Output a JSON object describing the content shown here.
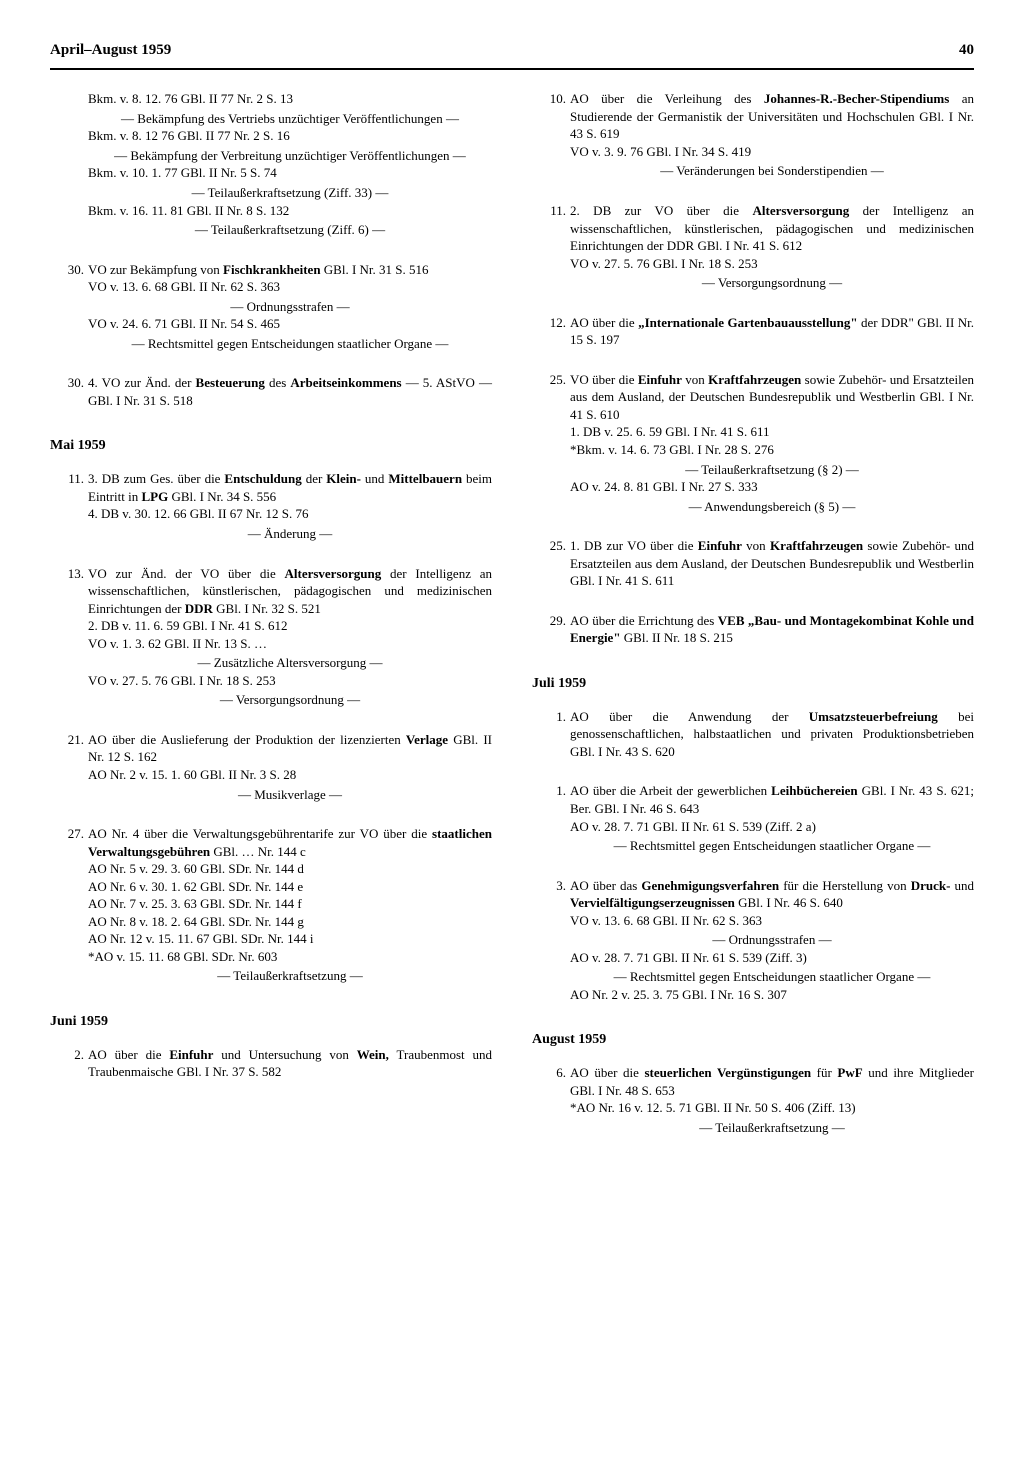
{
  "header": {
    "title": "April–August 1959",
    "page": "40"
  },
  "left": {
    "top_lines": [
      "Bkm. v.  8. 12. 76   GBl. II 77 Nr. 2 S. 13",
      "— Bekämpfung des Vertriebs unzüchtiger Veröffentlichungen —",
      "Bkm. v.  8. 12 76   GBl. II 77 Nr. 2 S. 16",
      "— Bekämpfung der Verbreitung unzüchtiger Veröffentlichungen —",
      "Bkm. v. 10.  1. 77   GBl. II Nr. 5 S. 74",
      "— Teilaußerkraftsetzung (Ziff. 33) —",
      "Bkm. v. 16. 11. 81   GBl. II Nr. 8 S. 132",
      "— Teilaußerkraftsetzung (Ziff. 6) —"
    ],
    "e30a": {
      "num": "30.",
      "body": "VO zur Bekämpfung von <b>Fischkrankheiten</b>   GBl. I Nr. 31 S. 516",
      "subs": [
        "VO v. 13. 6. 68   GBl. II Nr. 62 S. 363",
        "— Ordnungsstrafen —",
        "VO v. 24. 6. 71   GBl. II Nr. 54 S. 465",
        "— Rechtsmittel gegen Entscheidungen staatlicher Organe —"
      ]
    },
    "e30b": {
      "num": "30.",
      "body": "4. VO zur Änd. der <b>Besteuerung</b> des <b>Arbeitseinkommens</b> — 5. AStVO —   GBl. I Nr. 31 S. 518"
    },
    "month_mai": "Mai 1959",
    "e11": {
      "num": "11.",
      "body": "3. DB zum Ges. über die <b>Entschuldung</b> der <b>Klein-</b> und <b>Mittelbauern</b> beim Eintritt in <b>LPG</b>   GBl. I Nr. 34 S. 556",
      "subs": [
        "4. DB v. 30. 12. 66   GBl. II 67 Nr. 12 S. 76",
        "— Änderung —"
      ]
    },
    "e13": {
      "num": "13.",
      "body": "VO zur Änd. der VO über die <b>Altersversorgung</b> der Intelligenz an wissenschaftlichen, künstlerischen, pädagogischen und medizinischen Einrichtungen der <b>DDR</b>   GBl. I Nr. 32 S. 521",
      "subs": [
        "2. DB v. 11. 6. 59   GBl.  I Nr. 41 S. 612",
        "VO    v.  1. 3. 62   GBl. II Nr. 13 S. …",
        "— Zusätzliche Altersversorgung —",
        "VO   v. 27. 5. 76   GBl.  I Nr. 18 S. 253",
        "— Versorgungsordnung —"
      ]
    },
    "e21": {
      "num": "21.",
      "body": "AO über die Auslieferung der Produktion der lizenzierten <b>Verlage</b>   GBl. II Nr. 12 S. 162",
      "subs": [
        "AO Nr. 2 v. 15. 1. 60   GBl. II Nr. 3 S. 28",
        "— Musikverlage —"
      ]
    },
    "e27": {
      "num": "27.",
      "body": "AO Nr. 4 über die Verwaltungsgebührentarife zur VO über die <b>staatlichen Verwaltungsgebühren</b>   GBl. … Nr. 144 c",
      "subs": [
        "AO Nr.   5 v. 29.  3. 60   GBl. SDr. Nr. 144 d",
        "AO Nr.   6 v. 30.  1. 62   GBl. SDr. Nr. 144 e",
        "AO Nr.   7 v. 25.  3. 63   GBl. SDr. Nr. 144 f",
        "AO Nr.   8 v. 18.  2. 64   GBl. SDr. Nr. 144 g",
        "AO Nr. 12 v. 15. 11. 67   GBl. SDr. Nr. 144 i",
        "*AO        v. 15. 11. 68   GBl. SDr. Nr. 603",
        "— Teilaußerkraftsetzung —"
      ]
    },
    "month_juni": "Juni 1959",
    "e2": {
      "num": "2.",
      "body": "AO über die <b>Einfuhr</b> und Untersuchung von <b>Wein,</b> Traubenmost und Traubenmaische   GBl. I   Nr. 37 S. 582"
    }
  },
  "right": {
    "e10": {
      "num": "10.",
      "body": "AO über die Verleihung des <b>Johannes-R.-Becher-Stipendiums</b> an Studierende der Germanistik der Universitäten und Hochschulen   GBl. I Nr. 43 S. 619",
      "subs": [
        "VO v. 3. 9. 76   GBl. I Nr. 34 S. 419",
        "— Veränderungen bei Sonderstipendien —"
      ]
    },
    "e11": {
      "num": "11.",
      "body": "2. DB zur VO über die <b>Altersversorgung</b> der Intelligenz an wissenschaftlichen, künstlerischen, pädagogischen und medizinischen Einrichtungen der DDR   GBl. I Nr. 41 S. 612",
      "subs": [
        "VO v. 27. 5. 76   GBl. I Nr. 18 S. 253",
        "— Versorgungsordnung —"
      ]
    },
    "e12": {
      "num": "12.",
      "body": "AO über die <b>„Internationale Gartenbauausstellung\"</b> der DDR\"   GBl. II Nr. 15 S. 197"
    },
    "e25a": {
      "num": "25.",
      "body": "VO über die <b>Einfuhr</b> von <b>Kraftfahrzeugen</b> sowie Zubehör- und Ersatzteilen aus dem Ausland, der Deutschen Bundesrepublik und Westberlin   GBl. I Nr. 41 S. 610",
      "subs": [
        "1. DB  v. 25. 6. 59   GBl. I Nr. 41 S. 611",
        "*Bkm. v. 14. 6. 73   GBl. I Nr. 28 S. 276",
        "— Teilaußerkraftsetzung (§ 2) —",
        "AO     v. 24. 8. 81   GBl. I Nr. 27 S. 333",
        "— Anwendungsbereich (§ 5) —"
      ]
    },
    "e25b": {
      "num": "25.",
      "body": "1. DB zur VO über die <b>Einfuhr</b> von <b>Kraftfahrzeugen</b> sowie Zubehör- und Ersatzteilen aus dem Ausland, der Deutschen Bundesrepublik und Westberlin   GBl. I Nr. 41 S. 611"
    },
    "e29": {
      "num": "29.",
      "body": "AO über die Errichtung des <b>VEB „Bau- und Montagekombinat Kohle und Energie\"</b>   GBl. II Nr. 18 S. 215"
    },
    "month_juli": "Juli 1959",
    "e1a": {
      "num": "1.",
      "body": "AO über die Anwendung der <b>Umsatzsteuerbefreiung</b> bei genossenschaftlichen, halbstaatlichen und privaten Produktionsbetrieben   GBl. I Nr. 43 S. 620"
    },
    "e1b": {
      "num": "1.",
      "body": "AO über die Arbeit der gewerblichen <b>Leihbüchereien</b>   GBl. I Nr. 43 S. 621; Ber. GBl. I Nr. 46 S. 643",
      "subs": [
        "AO v. 28. 7. 71   GBl. II Nr. 61 S. 539 (Ziff. 2 a)",
        "— Rechtsmittel gegen Entscheidungen staatlicher Organe —"
      ]
    },
    "e3": {
      "num": "3.",
      "body": "AO über das <b>Genehmigungsverfahren</b> für die Herstellung von <b>Druck-</b> und <b>Vervielfältigungserzeugnissen</b>   GBl. I Nr. 46 S. 640",
      "subs": [
        "VO v. 13. 6. 68   GBl. II Nr. 62 S. 363",
        "— Ordnungsstrafen —",
        "AO v. 28. 7. 71   GBl. II Nr. 61 S. 539 (Ziff. 3)",
        "— Rechtsmittel gegen Entscheidungen staatlicher Organe —",
        "AO Nr. 2 v. 25. 3. 75   GBl. I Nr. 16 S. 307"
      ]
    },
    "month_aug": "August 1959",
    "e6": {
      "num": "6.",
      "body": "AO über die <b>steuerlichen Vergünstigungen</b> für <b>PwF</b> und ihre Mitglieder   GBl. I Nr. 48 S. 653",
      "subs": [
        "*AO Nr. 16 v. 12. 5. 71   GBl. II Nr. 50 S. 406 (Ziff. 13)",
        "— Teilaußerkraftsetzung —"
      ]
    }
  }
}
